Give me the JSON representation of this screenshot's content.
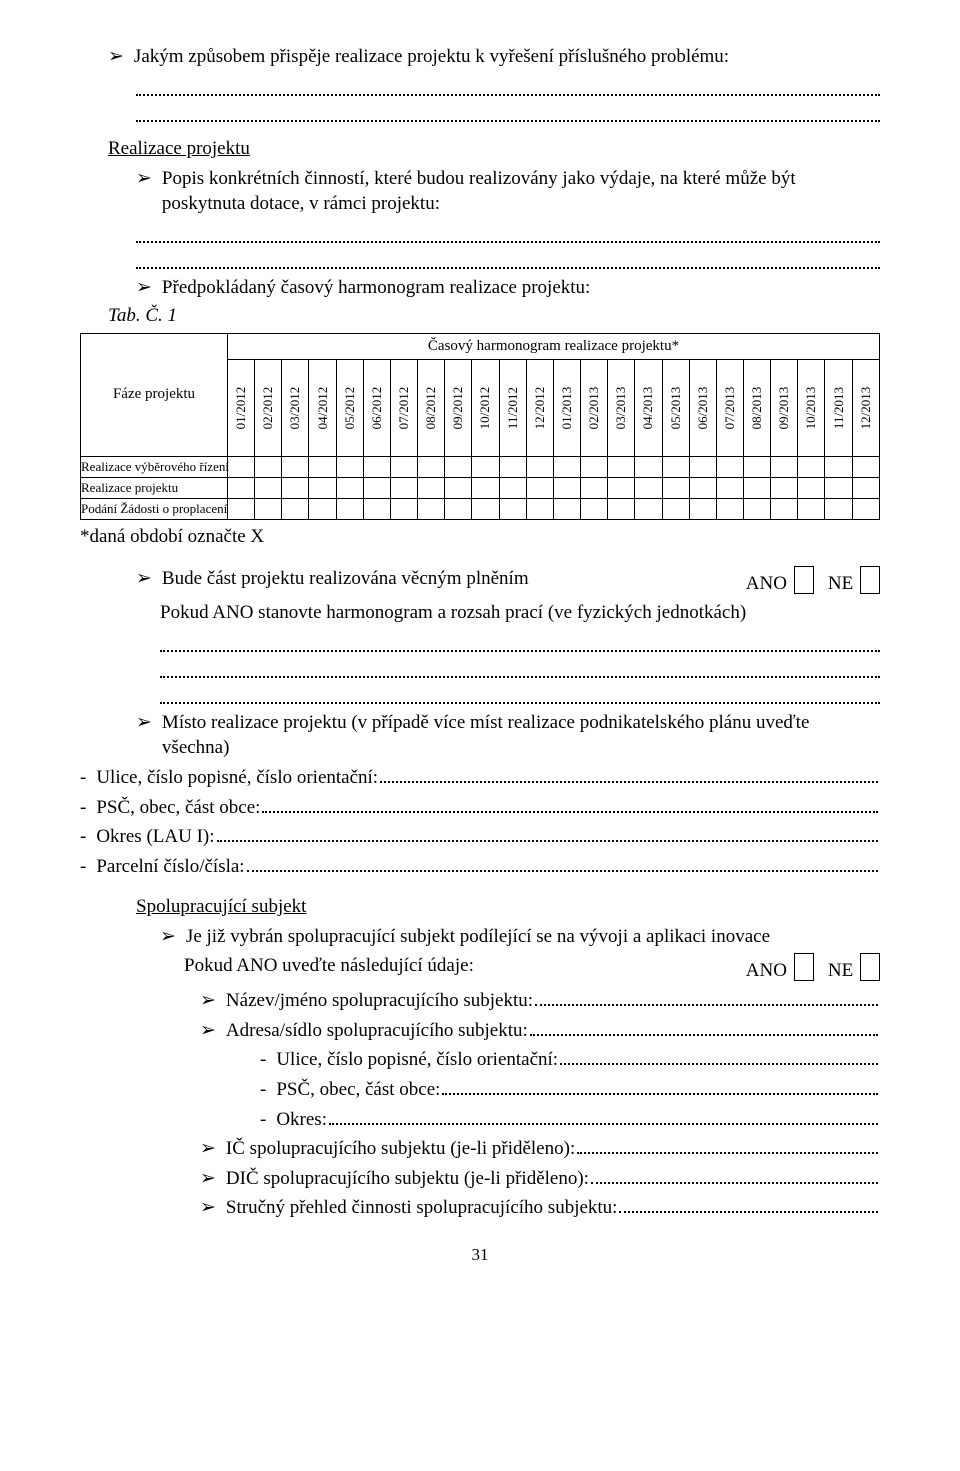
{
  "top": {
    "q1": "Jakým způsobem přispěje realizace projektu k vyřešení příslušného problému:"
  },
  "realizace": {
    "heading": "Realizace projektu",
    "popis": "Popis konkrétních činností, které budou realizovány jako výdaje, na které může být poskytnuta dotace, v rámci projektu:",
    "harmonogram_line": "Předpokládaný časový harmonogram realizace projektu:",
    "tab_label": "Tab. Č. 1"
  },
  "timeline": {
    "faze_label": "Fáze projektu",
    "header_title": "Časový harmonogram realizace projektu*",
    "months": [
      "01/2012",
      "02/2012",
      "03/2012",
      "04/2012",
      "05/2012",
      "06/2012",
      "07/2012",
      "08/2012",
      "09/2012",
      "10/2012",
      "11/2012",
      "12/2012",
      "01/2013",
      "02/2013",
      "03/2013",
      "04/2013",
      "05/2013",
      "06/2013",
      "07/2013",
      "08/2013",
      "09/2013",
      "10/2013",
      "11/2013",
      "12/2013"
    ],
    "rows": [
      "Realizace výběrového řízení",
      "Realizace projektu",
      "Podání Žádosti o proplacení"
    ],
    "footnote": "*daná období označte X"
  },
  "bude_cast": {
    "text": "Bude část projektu realizována věcným plněním",
    "ano": "ANO",
    "ne": "NE",
    "pokud": "Pokud ANO stanovte harmonogram a rozsah prací (ve fyzických jednotkách)"
  },
  "misto": {
    "intro": "Místo realizace projektu (v případě více míst realizace podnikatelského plánu uveďte všechna)",
    "ulice": "Ulice, číslo popisné, číslo orientační:",
    "psc": "PSČ, obec, část obce:",
    "okres": "Okres (LAU I):",
    "parcela": "Parcelní číslo/čísla:"
  },
  "spolu": {
    "heading": "Spolupracující subjekt",
    "q": "Je již vybrán spolupracující subjekt podílející se na vývoji a aplikaci inovace",
    "pokud": "Pokud ANO uveďte následující údaje:",
    "ano": "ANO",
    "ne": "NE",
    "nazev": "Název/jméno spolupracujícího subjektu:",
    "adresa": "Adresa/sídlo spolupracujícího subjektu:",
    "ulice": "Ulice, číslo popisné, číslo orientační:",
    "psc": "PSČ, obec, část obce:",
    "okres": "Okres:",
    "ic": "IČ spolupracujícího subjektu (je-li přiděleno):",
    "dic": "DIČ spolupracujícího subjektu (je-li přiděleno):",
    "prehled": "Stručný přehled činnosti spolupracujícího subjektu:"
  },
  "page_number": "31"
}
